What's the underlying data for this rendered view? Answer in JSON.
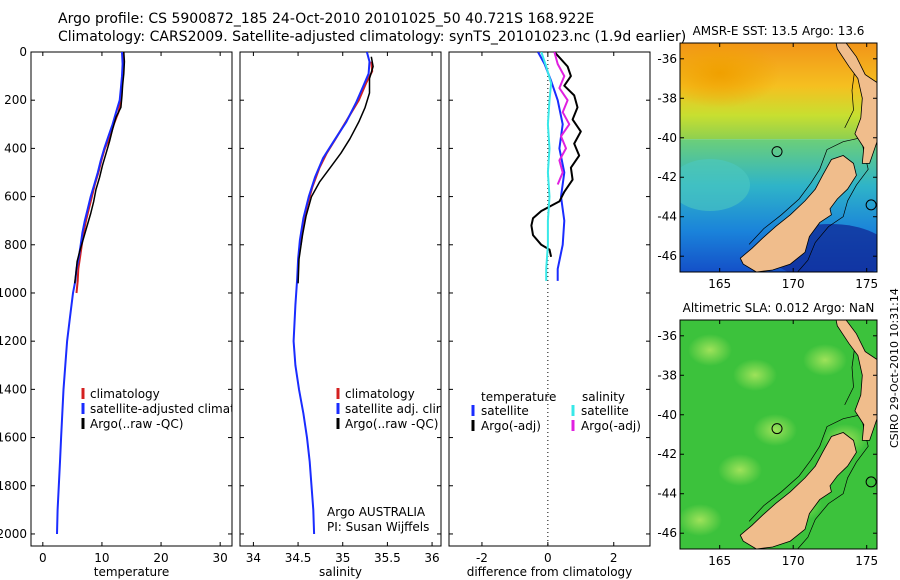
{
  "header": {
    "line1": "Argo profile: CS 5900872_185 24-Oct-2010 20101025_50 40.721S 168.922E",
    "line2": "Climatology: CARS2009. Satellite-adjusted climatology: synTS_20101023.nc (1.9d earlier)"
  },
  "stamp": "CSIRO 29-Oct-2010 10:31:14",
  "colors": {
    "red": "#d42020",
    "blue": "#1a2cff",
    "black": "#000000",
    "cyan": "#38e8e8",
    "magenta": "#e020e0",
    "land": "#f0bd8c"
  },
  "chart_data": [
    {
      "type": "line",
      "xlabel": "temperature",
      "xlim": [
        -2,
        32
      ],
      "xticks": [
        0,
        10,
        20,
        30
      ],
      "ylim": [
        0,
        2050
      ],
      "yticks": [
        0,
        200,
        400,
        600,
        800,
        1000,
        1200,
        1400,
        1600,
        1800,
        2000
      ],
      "y_reversed": true,
      "legend": {
        "position": "lower-right",
        "entries": [
          "climatology",
          "satellite-adjusted climatolog",
          "Argo(..raw -QC)"
        ]
      },
      "series": [
        {
          "name": "climatology",
          "color": "red",
          "width": 2,
          "points": [
            [
              13.5,
              0
            ],
            [
              13.6,
              50
            ],
            [
              13.5,
              100
            ],
            [
              13.4,
              150
            ],
            [
              13.2,
              200
            ],
            [
              12.8,
              250
            ],
            [
              12.0,
              300
            ],
            [
              11.4,
              350
            ],
            [
              10.5,
              400
            ],
            [
              9.9,
              450
            ],
            [
              9.4,
              500
            ],
            [
              8.8,
              550
            ],
            [
              8.3,
              600
            ],
            [
              7.8,
              650
            ],
            [
              7.3,
              700
            ],
            [
              6.9,
              750
            ],
            [
              6.6,
              800
            ],
            [
              6.3,
              850
            ],
            [
              6.0,
              900
            ],
            [
              5.9,
              950
            ],
            [
              5.7,
              1000
            ]
          ]
        },
        {
          "name": "satellite-adjusted climatology",
          "color": "blue",
          "width": 2,
          "points": [
            [
              13.4,
              0
            ],
            [
              13.5,
              50
            ],
            [
              13.4,
              100
            ],
            [
              13.2,
              150
            ],
            [
              13.0,
              200
            ],
            [
              12.4,
              250
            ],
            [
              11.8,
              300
            ],
            [
              11.1,
              350
            ],
            [
              10.4,
              400
            ],
            [
              9.8,
              450
            ],
            [
              9.3,
              500
            ],
            [
              8.7,
              550
            ],
            [
              8.1,
              600
            ],
            [
              7.6,
              650
            ],
            [
              7.1,
              700
            ],
            [
              6.7,
              750
            ],
            [
              6.4,
              800
            ],
            [
              6.1,
              850
            ],
            [
              5.7,
              900
            ],
            [
              5.5,
              950
            ],
            [
              5.1,
              1000
            ],
            [
              4.6,
              1100
            ],
            [
              4.1,
              1200
            ],
            [
              3.8,
              1300
            ],
            [
              3.5,
              1400
            ],
            [
              3.3,
              1500
            ],
            [
              3.1,
              1600
            ],
            [
              2.9,
              1700
            ],
            [
              2.7,
              1800
            ],
            [
              2.5,
              1900
            ],
            [
              2.4,
              2000
            ]
          ]
        },
        {
          "name": "Argo(..raw -QC)",
          "color": "black",
          "width": 1.5,
          "points": [
            [
              13.7,
              0
            ],
            [
              13.8,
              40
            ],
            [
              13.7,
              90
            ],
            [
              13.5,
              140
            ],
            [
              13.4,
              180
            ],
            [
              13.2,
              230
            ],
            [
              12.4,
              270
            ],
            [
              11.8,
              320
            ],
            [
              11.3,
              370
            ],
            [
              10.7,
              420
            ],
            [
              10.1,
              470
            ],
            [
              9.6,
              520
            ],
            [
              9.0,
              570
            ],
            [
              8.6,
              620
            ],
            [
              8.1,
              670
            ],
            [
              7.5,
              720
            ],
            [
              6.8,
              780
            ],
            [
              6.2,
              830
            ],
            [
              5.8,
              870
            ],
            [
              5.6,
              920
            ],
            [
              5.4,
              960
            ]
          ]
        }
      ]
    },
    {
      "type": "line",
      "xlabel": "salinity",
      "xlim": [
        33.85,
        36.1
      ],
      "xticks": [
        34,
        34.5,
        35,
        35.5,
        36
      ],
      "ylim": [
        0,
        2050
      ],
      "yticks": [
        0,
        200,
        400,
        600,
        800,
        1000,
        1200,
        1400,
        1600,
        1800,
        2000
      ],
      "y_reversed": true,
      "legend": {
        "position": "lower-right",
        "entries": [
          "climatology",
          "satellite adj. clim.",
          "Argo(..raw -QC)"
        ]
      },
      "annotation": [
        "Argo AUSTRALIA",
        "PI: Susan Wijffels"
      ],
      "series": [
        {
          "name": "climatology",
          "color": "red",
          "width": 2,
          "points": [
            [
              35.32,
              40
            ],
            [
              35.33,
              80
            ],
            [
              35.26,
              130
            ],
            [
              35.18,
              200
            ],
            [
              35.05,
              280
            ],
            [
              34.92,
              360
            ],
            [
              34.82,
              420
            ],
            [
              34.74,
              480
            ],
            [
              34.66,
              560
            ],
            [
              34.6,
              640
            ],
            [
              34.56,
              720
            ],
            [
              34.53,
              800
            ]
          ]
        },
        {
          "name": "satellite adj. clim.",
          "color": "blue",
          "width": 2,
          "points": [
            [
              35.27,
              0
            ],
            [
              35.3,
              40
            ],
            [
              35.29,
              90
            ],
            [
              35.22,
              150
            ],
            [
              35.15,
              210
            ],
            [
              35.04,
              290
            ],
            [
              34.9,
              370
            ],
            [
              34.78,
              440
            ],
            [
              34.69,
              520
            ],
            [
              34.62,
              600
            ],
            [
              34.56,
              690
            ],
            [
              34.52,
              780
            ],
            [
              34.5,
              860
            ],
            [
              34.49,
              940
            ],
            [
              34.47,
              1050
            ],
            [
              34.45,
              1200
            ],
            [
              34.47,
              1300
            ],
            [
              34.51,
              1400
            ],
            [
              34.56,
              1500
            ],
            [
              34.6,
              1600
            ],
            [
              34.63,
              1700
            ],
            [
              34.65,
              1800
            ],
            [
              34.67,
              1900
            ],
            [
              34.68,
              2000
            ]
          ]
        },
        {
          "name": "Argo(..raw -QC)",
          "color": "black",
          "width": 1.5,
          "points": [
            [
              35.32,
              20
            ],
            [
              35.34,
              60
            ],
            [
              35.3,
              110
            ],
            [
              35.3,
              170
            ],
            [
              35.25,
              230
            ],
            [
              35.18,
              290
            ],
            [
              35.08,
              360
            ],
            [
              34.98,
              420
            ],
            [
              34.86,
              480
            ],
            [
              34.74,
              540
            ],
            [
              34.65,
              600
            ],
            [
              34.59,
              680
            ],
            [
              34.55,
              760
            ],
            [
              34.51,
              860
            ],
            [
              34.5,
              960
            ]
          ]
        }
      ]
    },
    {
      "type": "line",
      "xlabel": "difference from climatology",
      "xlim": [
        -3,
        3.1
      ],
      "xticks": [
        -2,
        0,
        2
      ],
      "ylim": [
        0,
        2050
      ],
      "yticks": [
        0,
        200,
        400,
        600,
        800,
        1000,
        1200,
        1400,
        1600,
        1800,
        2000
      ],
      "y_reversed": true,
      "zero_line": "dotted",
      "legend": {
        "position": "lower-center",
        "headers": [
          "temperature",
          "salinity"
        ],
        "entries": [
          "satellite",
          "Argo(-adj)",
          "satellite",
          "Argo(-adj)"
        ]
      },
      "series": [
        {
          "name": "temperature satellite",
          "color": "blue",
          "width": 2,
          "points": [
            [
              -0.3,
              0
            ],
            [
              -0.1,
              50
            ],
            [
              0.1,
              120
            ],
            [
              0.3,
              200
            ],
            [
              0.45,
              300
            ],
            [
              0.35,
              400
            ],
            [
              0.5,
              500
            ],
            [
              0.4,
              600
            ],
            [
              0.5,
              700
            ],
            [
              0.45,
              800
            ],
            [
              0.3,
              900
            ],
            [
              0.3,
              950
            ]
          ]
        },
        {
          "name": "temperature Argo(-adj)",
          "color": "black",
          "width": 2,
          "points": [
            [
              0.2,
              0
            ],
            [
              0.4,
              30
            ],
            [
              0.6,
              60
            ],
            [
              0.7,
              100
            ],
            [
              0.5,
              140
            ],
            [
              0.8,
              180
            ],
            [
              0.9,
              230
            ],
            [
              0.75,
              280
            ],
            [
              1.0,
              330
            ],
            [
              0.8,
              380
            ],
            [
              0.95,
              430
            ],
            [
              0.7,
              480
            ],
            [
              0.75,
              530
            ],
            [
              0.5,
              580
            ],
            [
              0.35,
              620
            ],
            [
              -0.2,
              660
            ],
            [
              -0.45,
              690
            ],
            [
              -0.5,
              720
            ],
            [
              -0.45,
              760
            ],
            [
              -0.2,
              800
            ],
            [
              0.05,
              820
            ],
            [
              0.1,
              850
            ]
          ]
        },
        {
          "name": "salinity satellite",
          "color": "cyan",
          "width": 2,
          "points": [
            [
              -0.2,
              0
            ],
            [
              -0.05,
              60
            ],
            [
              0.1,
              130
            ],
            [
              0.05,
              200
            ],
            [
              0.0,
              300
            ],
            [
              0.05,
              400
            ],
            [
              0.0,
              500
            ],
            [
              0.05,
              600
            ],
            [
              0.0,
              700
            ],
            [
              0.0,
              800
            ],
            [
              -0.05,
              900
            ],
            [
              -0.05,
              950
            ]
          ]
        },
        {
          "name": "salinity Argo(-adj)",
          "color": "magenta",
          "width": 2,
          "points": [
            [
              0.2,
              0
            ],
            [
              0.3,
              50
            ],
            [
              0.5,
              100
            ],
            [
              0.35,
              150
            ],
            [
              0.6,
              200
            ],
            [
              0.45,
              250
            ],
            [
              0.65,
              300
            ],
            [
              0.4,
              350
            ],
            [
              0.55,
              400
            ],
            [
              0.35,
              450
            ],
            [
              0.45,
              500
            ],
            [
              0.3,
              550
            ]
          ]
        }
      ]
    },
    {
      "type": "heatmap",
      "title": "AMSR-E SST: 13.5 Argo: 13.6",
      "xticks": [
        165,
        170,
        175
      ],
      "xlim": [
        162.3,
        175.7
      ],
      "yticks": [
        -36,
        -38,
        -40,
        -42,
        -44,
        -46
      ],
      "ylim": [
        -46.8,
        -35.2
      ],
      "markers": [
        [
          168.9,
          -40.7
        ],
        [
          175.3,
          -43.4
        ]
      ]
    },
    {
      "type": "heatmap",
      "title": "Altimetric SLA: 0.012 Argo: NaN",
      "xticks": [
        165,
        170,
        175
      ],
      "xlim": [
        162.3,
        175.7
      ],
      "yticks": [
        -36,
        -38,
        -40,
        -42,
        -44,
        -46
      ],
      "ylim": [
        -46.8,
        -35.2
      ],
      "markers": [
        [
          168.9,
          -40.7
        ],
        [
          175.3,
          -43.4
        ]
      ]
    }
  ]
}
